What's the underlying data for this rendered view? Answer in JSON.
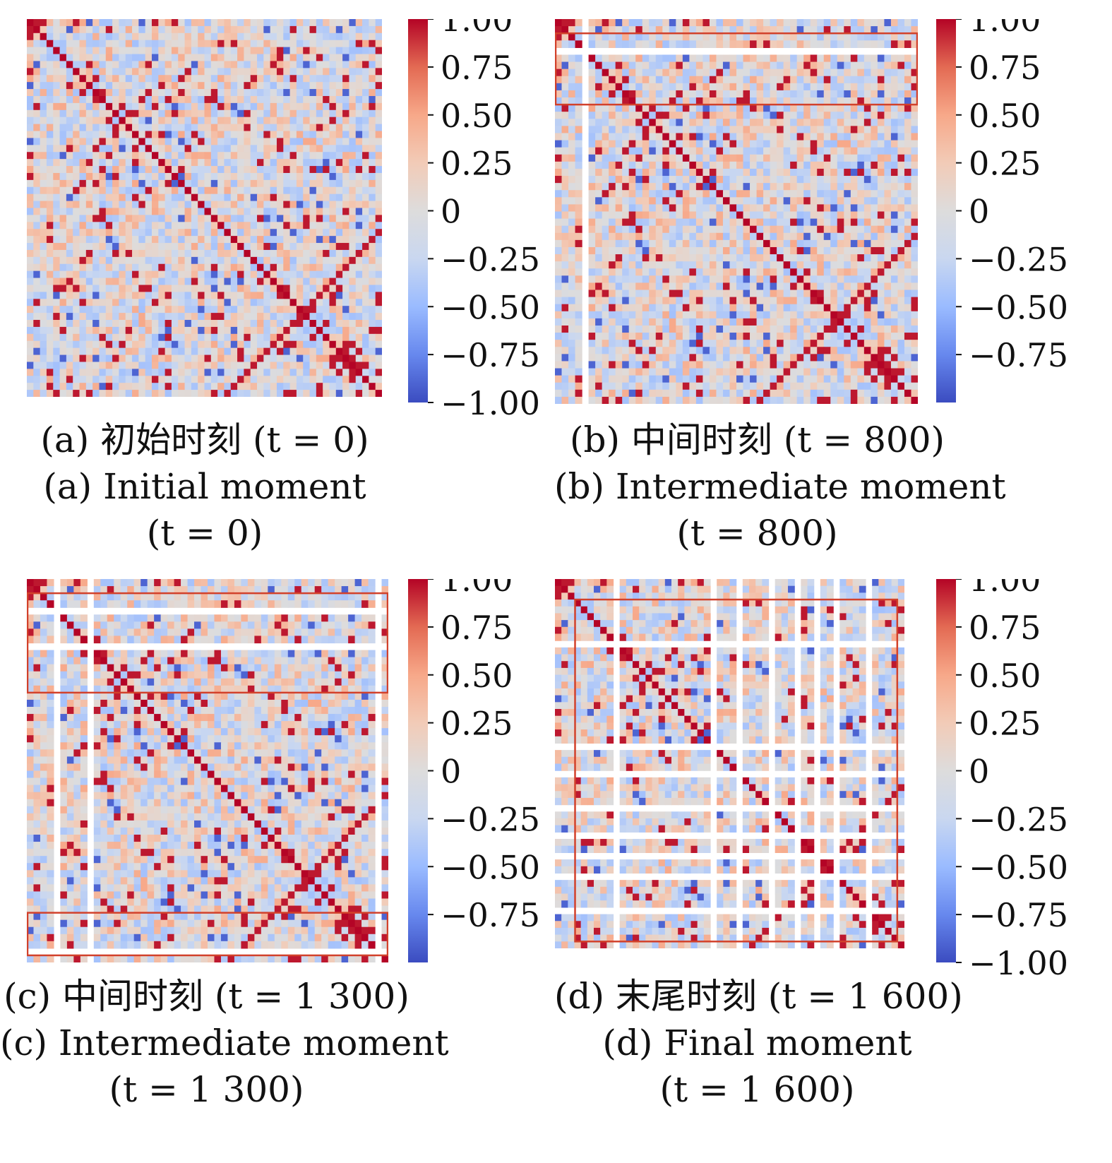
{
  "colors": {
    "high": "#b40426",
    "mid": "#dddddd",
    "low": "#3b4cc0",
    "highlight_box": "#d2412b"
  },
  "chart_data": [
    {
      "type": "heatmap",
      "caption_cn": "(a) 初始时刻 (t = 0)",
      "caption_en": "(a) Initial moment",
      "caption_t": "(t = 0)",
      "colorbar_ticks": [
        "1.00",
        "0.75",
        "0.50",
        "0.25",
        "0",
        "−0.25",
        "−0.50",
        "−0.75",
        "−1.00"
      ],
      "vmin": -1,
      "vmax": 1,
      "matrix_size": 54,
      "removed_rows": [],
      "highlight_boxes": [],
      "note": "correlation matrix, symmetric, diagonal = 1"
    },
    {
      "type": "heatmap",
      "caption_cn": "(b) 中间时刻 (t = 800)",
      "caption_en": "(b) Intermediate moment",
      "caption_t": "(t = 800)",
      "colorbar_ticks": [
        "1.00",
        "0.75",
        "0.50",
        "0.25",
        "0",
        "−0.25",
        "−0.50",
        "−0.75"
      ],
      "vmin": -1,
      "vmax": 1,
      "matrix_size": 54,
      "removed_rows": [
        4
      ],
      "highlight_boxes": [
        {
          "rows": [
            2,
            12
          ]
        }
      ],
      "note": "row/column 4 removed"
    },
    {
      "type": "heatmap",
      "caption_cn": "(c) 中间时刻 (t = 1 300)",
      "caption_en": "(c) Intermediate moment",
      "caption_t": "(t = 1 300)",
      "colorbar_ticks": [
        "1.00",
        "0.75",
        "0.50",
        "0.25",
        "0",
        "−0.25",
        "−0.50",
        "−0.75"
      ],
      "vmin": -1,
      "vmax": 1,
      "matrix_size": 54,
      "removed_rows": [
        4,
        9,
        52
      ],
      "highlight_boxes": [
        {
          "rows": [
            2,
            16
          ]
        },
        {
          "rows": [
            47,
            53
          ]
        }
      ],
      "note": "rows/columns 4, 9, 52 removed"
    },
    {
      "type": "heatmap",
      "caption_cn": "(d) 末尾时刻 (t = 1 600)",
      "caption_en": "(d) Final moment",
      "caption_t": "(t = 1 600)",
      "colorbar_ticks": [
        "1.00",
        "0.75",
        "0.50",
        "0.25",
        "0",
        "−0.25",
        "−0.50",
        "−0.75",
        "−1.00"
      ],
      "vmin": -1,
      "vmax": 1,
      "matrix_size": 54,
      "removed_rows": [
        9,
        24,
        28,
        33,
        37,
        40,
        43,
        48
      ],
      "highlight_boxes": [
        {
          "rows": [
            3,
            53
          ],
          "cols": [
            3,
            53
          ]
        }
      ],
      "note": "many rows/columns removed"
    }
  ]
}
